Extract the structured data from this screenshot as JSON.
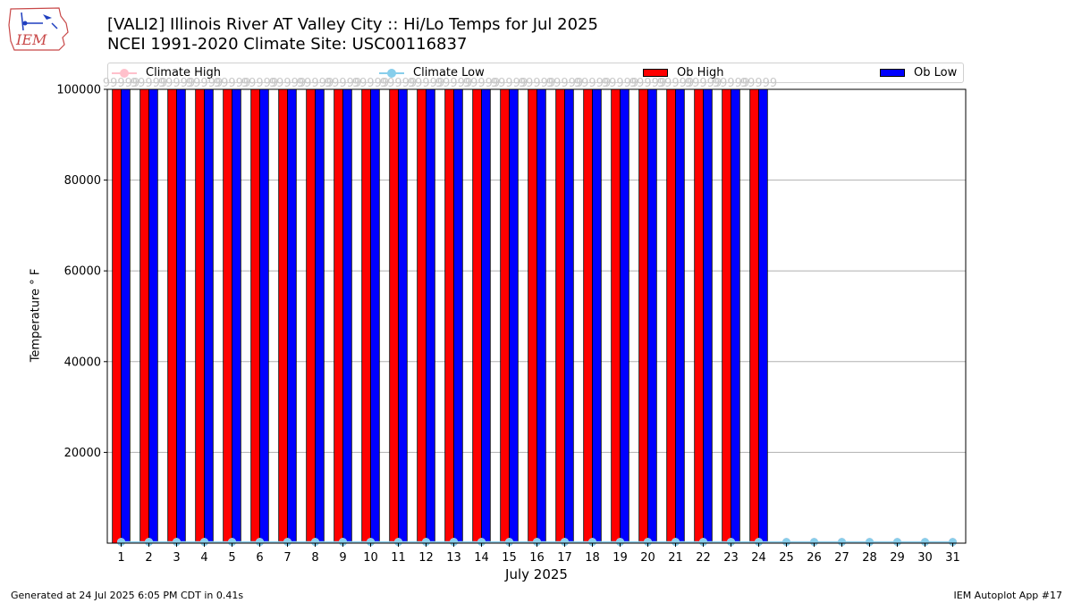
{
  "header": {
    "title_line1": "[VALI2] Illinois River  AT Valley City :: Hi/Lo Temps for Jul 2025",
    "title_line2": "NCEI 1991-2020 Climate Site: USC00116837",
    "logo_text": "IEM"
  },
  "footer": {
    "generated": "Generated at 24 Jul 2025 6:05 PM CDT in 0.41s",
    "app": "IEM Autoplot App #17"
  },
  "legend": {
    "climate_high": "Climate High",
    "climate_low": "Climate Low",
    "ob_high": "Ob High",
    "ob_low": "Ob Low"
  },
  "colors": {
    "ob_high": "#ff0000",
    "ob_low": "#0000ff",
    "climate_high": "#ffc0cb",
    "climate_low": "#87ceeb",
    "grid": "#b0b0b0",
    "bar_value_label": "#c8c8c8"
  },
  "chart_data": {
    "type": "bar",
    "title": "[VALI2] Illinois River  AT Valley City :: Hi/Lo Temps for Jul 2025",
    "subtitle": "NCEI 1991-2020 Climate Site: USC00116837",
    "xlabel": "July 2025",
    "ylabel": "Temperature $^\\circ$F",
    "ylabel_display": "Temperature ° F",
    "ylim": [
      0,
      100000
    ],
    "yticks": [
      20000,
      40000,
      60000,
      80000,
      100000
    ],
    "grid": "y",
    "legend_position": "top",
    "categories": [
      "1",
      "2",
      "3",
      "4",
      "5",
      "6",
      "7",
      "8",
      "9",
      "10",
      "11",
      "12",
      "13",
      "14",
      "15",
      "16",
      "17",
      "18",
      "19",
      "20",
      "21",
      "22",
      "23",
      "24",
      "25",
      "26",
      "27",
      "28",
      "29",
      "30",
      "31"
    ],
    "series": [
      {
        "name": "Ob High",
        "kind": "bar",
        "values": [
          99999,
          99999,
          99999,
          99999,
          99999,
          99999,
          99999,
          99999,
          99999,
          99999,
          99999,
          99999,
          99999,
          99999,
          99999,
          99999,
          99999,
          99999,
          99999,
          99999,
          99999,
          99999,
          99999,
          99999,
          null,
          null,
          null,
          null,
          null,
          null,
          null
        ]
      },
      {
        "name": "Ob Low",
        "kind": "bar",
        "values": [
          99999,
          99999,
          99999,
          99999,
          99999,
          99999,
          99999,
          99999,
          99999,
          99999,
          99999,
          99999,
          99999,
          99999,
          99999,
          99999,
          99999,
          99999,
          99999,
          99999,
          99999,
          99999,
          99999,
          99999,
          null,
          null,
          null,
          null,
          null,
          null,
          null
        ]
      },
      {
        "name": "Climate High",
        "kind": "line",
        "values": [
          86,
          86,
          86,
          86,
          86,
          86,
          86,
          86,
          86,
          86,
          86,
          86,
          86,
          86,
          86,
          86,
          86,
          86,
          86,
          86,
          86,
          86,
          86,
          86,
          86,
          86,
          86,
          86,
          86,
          86,
          86
        ]
      },
      {
        "name": "Climate Low",
        "kind": "line",
        "values": [
          65,
          65,
          65,
          65,
          65,
          65,
          65,
          65,
          65,
          65,
          65,
          65,
          65,
          65,
          65,
          65,
          65,
          65,
          65,
          65,
          65,
          65,
          65,
          65,
          65,
          65,
          65,
          65,
          65,
          65,
          65
        ]
      }
    ],
    "bar_value_labels": [
      "99999",
      "99999",
      "99999",
      "99999",
      "99999",
      "99999",
      "99999",
      "99999",
      "99999",
      "99999",
      "99999",
      "99999",
      "99999",
      "99999",
      "99999",
      "99999",
      "99999",
      "99999",
      "99999",
      "99999",
      "99999",
      "99999",
      "99999",
      "99999"
    ]
  }
}
